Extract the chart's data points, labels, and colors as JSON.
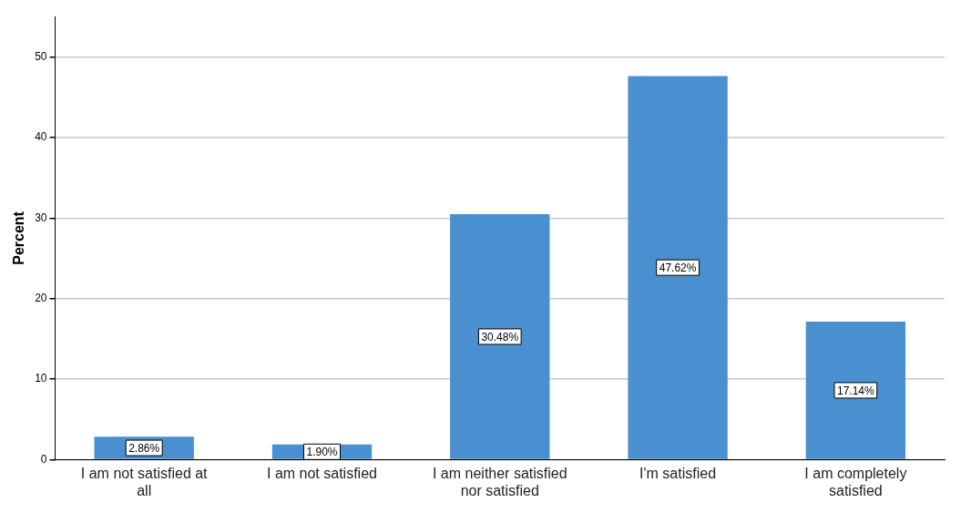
{
  "chart_data": {
    "type": "bar",
    "ylabel": "Percent",
    "categories": [
      "I am not satisfied at all",
      "I am not satisfied",
      "I am neither satisfied nor satisfied",
      "I'm satisfied",
      "I am completely satisfied"
    ],
    "values": [
      2.86,
      1.9,
      30.48,
      47.62,
      17.14
    ],
    "value_labels": [
      "2.86%",
      "1.90%",
      "30.48%",
      "47.62%",
      "17.14%"
    ],
    "color": "#4a90d0",
    "ylim": [
      0,
      55
    ],
    "yticks": [
      0,
      10,
      20,
      30,
      40,
      50
    ],
    "grid": "y",
    "legend": false
  }
}
